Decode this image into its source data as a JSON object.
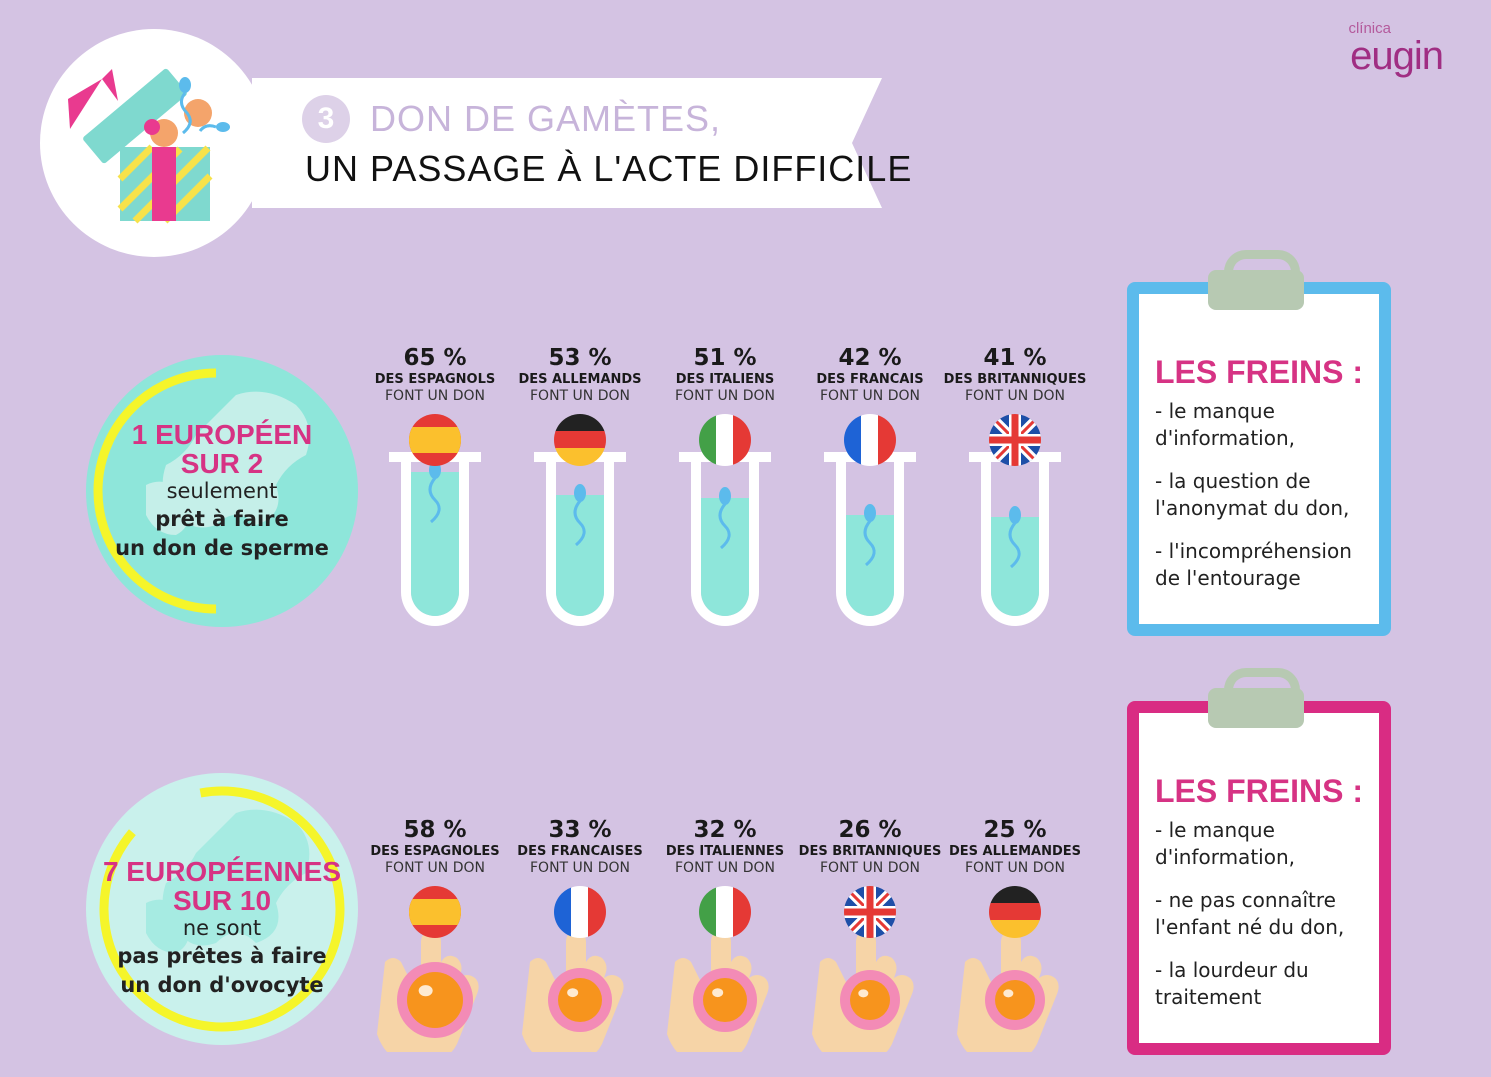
{
  "logo": {
    "small": "clínica",
    "brand": "eugin"
  },
  "header": {
    "number": "3",
    "title_line1": "DON DE GAMÈTES,",
    "title_line2": "UN PASSAGE À L'ACTE DIFFICILE"
  },
  "men": {
    "headline1": "1 EUROPÉEN",
    "headline2": "SUR 2",
    "line3": "seulement",
    "line4": "prêt à faire",
    "line5": "un don de sperme",
    "stats": [
      {
        "pct": "65 %",
        "who": "DES ESPAGNOLS",
        "act": "FONT UN DON",
        "flag": "spain-flag-icon",
        "level": 0.65
      },
      {
        "pct": "53 %",
        "who": "DES ALLEMANDS",
        "act": "FONT UN DON",
        "flag": "germany-flag-icon",
        "level": 0.53
      },
      {
        "pct": "51 %",
        "who": "DES ITALIENS",
        "act": "FONT UN DON",
        "flag": "italy-flag-icon",
        "level": 0.51
      },
      {
        "pct": "42 %",
        "who": "DES FRANCAIS",
        "act": "FONT UN DON",
        "flag": "france-flag-icon",
        "level": 0.42
      },
      {
        "pct": "41 %",
        "who": "DES BRITANNIQUES",
        "act": "FONT UN DON",
        "flag": "uk-flag-icon",
        "level": 0.41
      }
    ],
    "brakes_title": "LES FREINS :",
    "brakes": [
      "- le manque d'information,",
      "- la question de l'anonymat du don,",
      "- l'incompréhension de l'entourage"
    ]
  },
  "women": {
    "headline1": "7 EUROPÉENNES",
    "headline2": "SUR 10",
    "line3": "ne sont",
    "line4": "pas prêtes à faire",
    "line5": "un don d'ovocyte",
    "stats": [
      {
        "pct": "58 %",
        "who": "DES ESPAGNOLES",
        "act": "FONT UN DON",
        "flag": "spain-flag-icon",
        "level": 0.58
      },
      {
        "pct": "33 %",
        "who": "DES FRANCAISES",
        "act": "FONT UN DON",
        "flag": "france-flag-icon",
        "level": 0.33
      },
      {
        "pct": "32 %",
        "who": "DES ITALIENNES",
        "act": "FONT UN DON",
        "flag": "italy-flag-icon",
        "level": 0.32
      },
      {
        "pct": "26 %",
        "who": "DES BRITANNIQUES",
        "act": "FONT UN DON",
        "flag": "uk-flag-icon",
        "level": 0.26
      },
      {
        "pct": "25 %",
        "who": "DES ALLEMANDES",
        "act": "FONT UN DON",
        "flag": "germany-flag-icon",
        "level": 0.25
      }
    ],
    "brakes_title": "LES FREINS :",
    "brakes": [
      "- le manque d'information,",
      "- ne pas connaître l'enfant né du don,",
      "- la lourdeur du traitement"
    ]
  }
}
